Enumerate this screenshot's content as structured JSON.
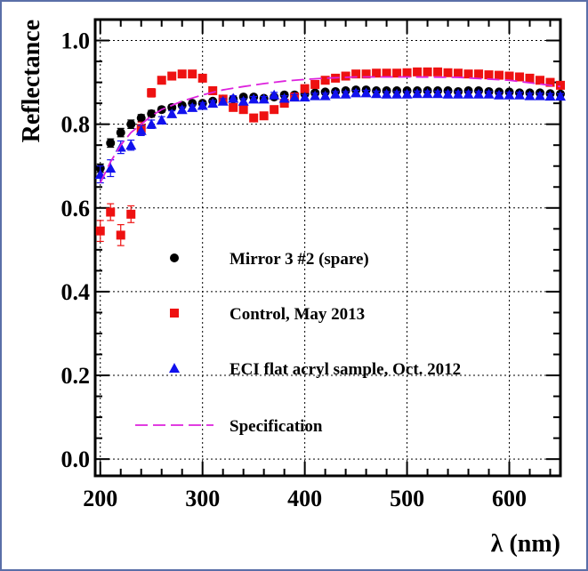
{
  "chart_data": {
    "type": "scatter",
    "xlabel": "λ (nm)",
    "ylabel": "Reflectance",
    "xlim": [
      195,
      650
    ],
    "ylim": [
      -0.04,
      1.05
    ],
    "x_ticks": [
      {
        "value": 200,
        "label": "200"
      },
      {
        "value": 300,
        "label": "300"
      },
      {
        "value": 400,
        "label": "400"
      },
      {
        "value": 500,
        "label": "500"
      },
      {
        "value": 600,
        "label": "600"
      }
    ],
    "y_ticks": [
      {
        "value": 0.0,
        "label": "0.0"
      },
      {
        "value": 0.2,
        "label": "0.2"
      },
      {
        "value": 0.4,
        "label": "0.4"
      },
      {
        "value": 0.6,
        "label": "0.6"
      },
      {
        "value": 0.8,
        "label": "0.8"
      },
      {
        "value": 1.0,
        "label": "1.0"
      }
    ],
    "grid": true,
    "legend_placement": "inside-lower-left",
    "series": [
      {
        "name": "Mirror 3 #2 (spare)",
        "marker": "circle",
        "color": "#000000",
        "x": [
          200,
          210,
          220,
          230,
          240,
          250,
          260,
          270,
          280,
          290,
          300,
          310,
          320,
          330,
          340,
          350,
          360,
          370,
          380,
          390,
          400,
          410,
          420,
          430,
          440,
          450,
          460,
          470,
          480,
          490,
          500,
          510,
          520,
          530,
          540,
          550,
          560,
          570,
          580,
          590,
          600,
          610,
          620,
          630,
          640,
          650
        ],
        "y": [
          0.695,
          0.755,
          0.78,
          0.8,
          0.815,
          0.825,
          0.835,
          0.84,
          0.845,
          0.85,
          0.85,
          0.855,
          0.86,
          0.86,
          0.865,
          0.865,
          0.862,
          0.865,
          0.87,
          0.87,
          0.872,
          0.875,
          0.877,
          0.878,
          0.88,
          0.882,
          0.882,
          0.88,
          0.88,
          0.88,
          0.88,
          0.88,
          0.88,
          0.88,
          0.88,
          0.878,
          0.88,
          0.88,
          0.878,
          0.877,
          0.877,
          0.875,
          0.875,
          0.875,
          0.873,
          0.872
        ],
        "err": [
          0.01,
          0.01,
          0.01,
          0.01,
          0.008,
          0.008,
          0.006,
          0.006,
          0.005,
          0.005,
          0.005,
          0.005,
          0.005,
          0.005,
          0.005,
          0.005,
          0.005,
          0.005,
          0.005,
          0.005,
          0.005,
          0.005,
          0.005,
          0.005,
          0.005,
          0.005,
          0.005,
          0.005,
          0.005,
          0.005,
          0.005,
          0.005,
          0.005,
          0.005,
          0.005,
          0.005,
          0.005,
          0.005,
          0.005,
          0.005,
          0.005,
          0.005,
          0.005,
          0.005,
          0.005,
          0.005
        ]
      },
      {
        "name": "Control, May 2013",
        "marker": "square",
        "color": "#ee1111",
        "x": [
          200,
          210,
          220,
          230,
          240,
          250,
          260,
          270,
          280,
          290,
          300,
          310,
          320,
          330,
          340,
          350,
          360,
          370,
          380,
          390,
          400,
          410,
          420,
          430,
          440,
          450,
          460,
          470,
          480,
          490,
          500,
          510,
          520,
          530,
          540,
          550,
          560,
          570,
          580,
          590,
          600,
          610,
          620,
          630,
          640,
          650
        ],
        "y": [
          0.545,
          0.59,
          0.535,
          0.585,
          0.79,
          0.875,
          0.905,
          0.915,
          0.92,
          0.92,
          0.91,
          0.88,
          0.86,
          0.84,
          0.835,
          0.815,
          0.82,
          0.835,
          0.85,
          0.865,
          0.885,
          0.895,
          0.905,
          0.91,
          0.915,
          0.92,
          0.92,
          0.922,
          0.922,
          0.922,
          0.923,
          0.925,
          0.925,
          0.925,
          0.923,
          0.922,
          0.92,
          0.92,
          0.918,
          0.917,
          0.915,
          0.913,
          0.91,
          0.905,
          0.9,
          0.893
        ],
        "err": [
          0.025,
          0.02,
          0.025,
          0.02,
          0.015,
          0.01,
          0.008,
          0.007,
          0.006,
          0.006,
          0.006,
          0.006,
          0.006,
          0.006,
          0.006,
          0.006,
          0.006,
          0.006,
          0.006,
          0.006,
          0.006,
          0.006,
          0.006,
          0.006,
          0.006,
          0.006,
          0.006,
          0.006,
          0.006,
          0.006,
          0.006,
          0.006,
          0.006,
          0.006,
          0.006,
          0.006,
          0.006,
          0.006,
          0.006,
          0.006,
          0.006,
          0.006,
          0.006,
          0.006,
          0.006,
          0.006
        ]
      },
      {
        "name": "ECI flat acryl sample, Oct. 2012",
        "marker": "triangle",
        "color": "#1111ee",
        "x": [
          200,
          210,
          220,
          230,
          240,
          250,
          260,
          270,
          280,
          290,
          300,
          310,
          320,
          330,
          340,
          350,
          360,
          370,
          380,
          390,
          400,
          410,
          420,
          430,
          440,
          450,
          460,
          470,
          480,
          490,
          500,
          510,
          520,
          530,
          540,
          550,
          560,
          570,
          580,
          590,
          600,
          610,
          620,
          630,
          640,
          650
        ],
        "y": [
          0.68,
          0.695,
          0.745,
          0.75,
          0.785,
          0.8,
          0.81,
          0.825,
          0.835,
          0.84,
          0.845,
          0.85,
          0.855,
          0.862,
          0.855,
          0.86,
          0.86,
          0.87,
          0.862,
          0.865,
          0.865,
          0.868,
          0.868,
          0.872,
          0.872,
          0.875,
          0.875,
          0.873,
          0.872,
          0.872,
          0.872,
          0.873,
          0.873,
          0.873,
          0.872,
          0.872,
          0.872,
          0.872,
          0.872,
          0.87,
          0.87,
          0.87,
          0.868,
          0.868,
          0.867,
          0.867
        ],
        "err": [
          0.02,
          0.02,
          0.015,
          0.012,
          0.012,
          0.01,
          0.008,
          0.007,
          0.006,
          0.006,
          0.006,
          0.006,
          0.006,
          0.006,
          0.006,
          0.006,
          0.006,
          0.006,
          0.006,
          0.006,
          0.006,
          0.006,
          0.006,
          0.006,
          0.006,
          0.006,
          0.006,
          0.006,
          0.006,
          0.006,
          0.006,
          0.006,
          0.006,
          0.006,
          0.006,
          0.006,
          0.006,
          0.006,
          0.006,
          0.006,
          0.006,
          0.006,
          0.006,
          0.006,
          0.006,
          0.006
        ]
      },
      {
        "name": "Specification",
        "marker": "dashed-line",
        "color": "#dd22dd",
        "x": [
          200,
          210,
          220,
          230,
          240,
          250,
          260,
          270,
          280,
          300,
          320,
          340,
          360,
          380,
          400,
          420,
          450,
          500,
          550,
          600,
          650
        ],
        "y": [
          0.66,
          0.71,
          0.75,
          0.78,
          0.8,
          0.82,
          0.835,
          0.845,
          0.855,
          0.87,
          0.882,
          0.89,
          0.897,
          0.903,
          0.907,
          0.91,
          0.913,
          0.913,
          0.912,
          0.905,
          0.89
        ]
      }
    ]
  }
}
